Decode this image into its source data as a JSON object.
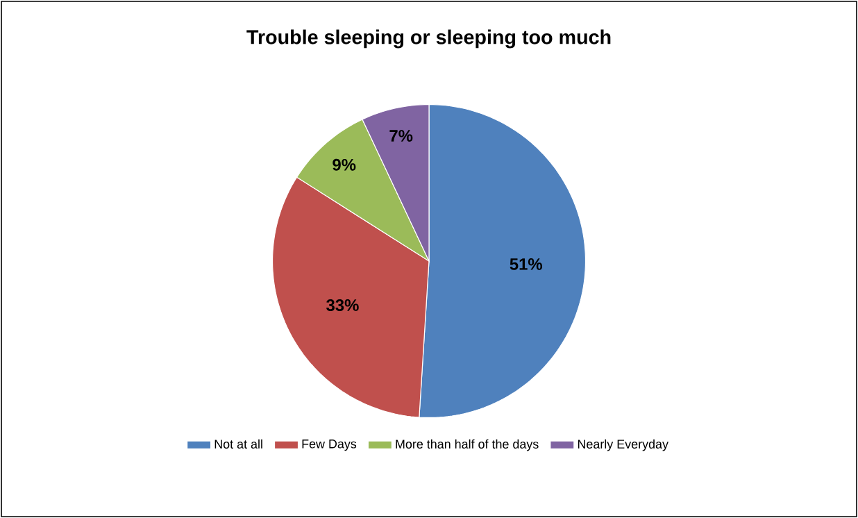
{
  "chart_data": {
    "type": "pie",
    "title": "Trouble sleeping or sleeping too much",
    "categories": [
      "Not at all",
      "Few Days",
      "More than half of the days",
      "Nearly Everyday"
    ],
    "values": [
      51,
      33,
      9,
      7
    ],
    "colors": [
      "#4f81bd",
      "#c0504d",
      "#9bbb59",
      "#8064a2"
    ],
    "value_labels": [
      "51%",
      "33%",
      "9%",
      "7%"
    ],
    "legend": "bottom"
  }
}
